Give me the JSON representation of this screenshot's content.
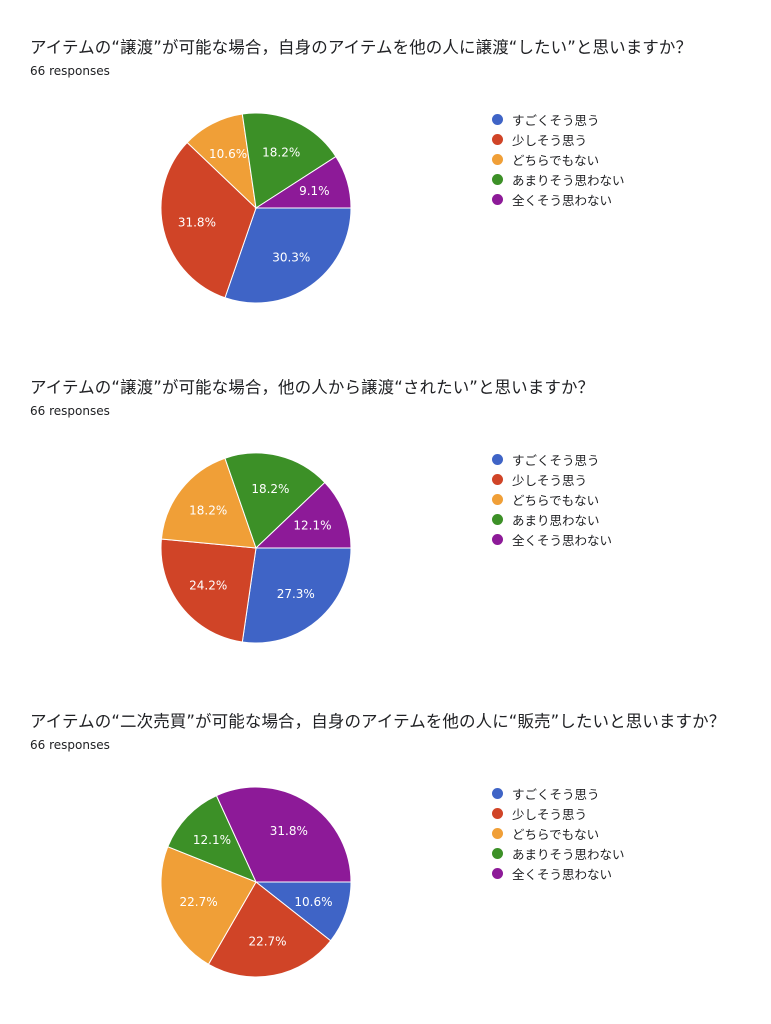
{
  "chart_data": [
    {
      "type": "pie",
      "title": "アイテムの“譲渡”が可能な場合，自身のアイテムを他の人に譲渡“したい”と思いますか？",
      "responses": "66 responses",
      "legend_position": "right",
      "slices": [
        {
          "label": "すごくそう思う",
          "value": 30.3,
          "display": "30.3%",
          "color": "#3f64c6"
        },
        {
          "label": "少しそう思う",
          "value": 31.8,
          "display": "31.8%",
          "color": "#d04427"
        },
        {
          "label": "どちらでもない",
          "value": 10.6,
          "display": "10.6%",
          "color": "#f09f37"
        },
        {
          "label": "あまりそう思わない",
          "value": 18.2,
          "display": "18.2%",
          "color": "#3c9027"
        },
        {
          "label": "全くそう思わない",
          "value": 9.1,
          "display": "9.1%",
          "color": "#8d1a98"
        }
      ]
    },
    {
      "type": "pie",
      "title": "アイテムの“譲渡”が可能な場合，他の人から譲渡“されたい”と思いますか？",
      "responses": "66 responses",
      "legend_position": "right",
      "slices": [
        {
          "label": "すごくそう思う",
          "value": 27.3,
          "display": "27.3%",
          "color": "#3f64c6"
        },
        {
          "label": "少しそう思う",
          "value": 24.2,
          "display": "24.2%",
          "color": "#d04427"
        },
        {
          "label": "どちらでもない",
          "value": 18.2,
          "display": "18.2%",
          "color": "#f09f37"
        },
        {
          "label": "あまり思わない",
          "value": 18.2,
          "display": "18.2%",
          "color": "#3c9027"
        },
        {
          "label": "全くそう思わない",
          "value": 12.1,
          "display": "12.1%",
          "color": "#8d1a98"
        }
      ]
    },
    {
      "type": "pie",
      "title": "アイテムの“二次売買”が可能な場合，自身のアイテムを他の人に“販売”したいと思いますか？",
      "responses": "66 responses",
      "legend_position": "right",
      "slices": [
        {
          "label": "すごくそう思う",
          "value": 10.6,
          "display": "10.6%",
          "color": "#3f64c6"
        },
        {
          "label": "少しそう思う",
          "value": 22.7,
          "display": "22.7%",
          "color": "#d04427"
        },
        {
          "label": "どちらでもない",
          "value": 22.7,
          "display": "22.7%",
          "color": "#f09f37"
        },
        {
          "label": "あまりそう思わない",
          "value": 12.1,
          "display": "12.1%",
          "color": "#3c9027"
        },
        {
          "label": "全くそう思わない",
          "value": 31.8,
          "display": "31.8%",
          "color": "#8d1a98"
        }
      ]
    }
  ]
}
